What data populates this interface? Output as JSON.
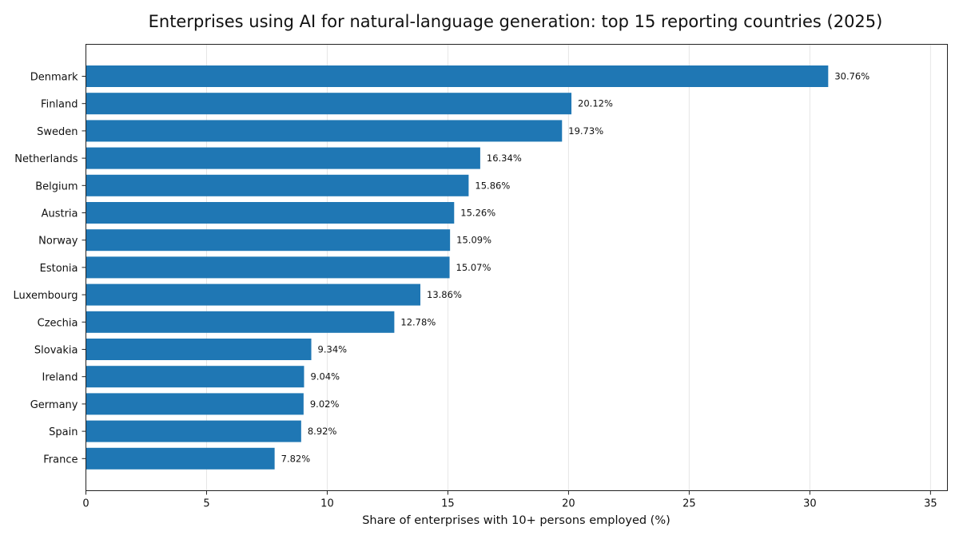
{
  "chart_data": {
    "type": "bar",
    "orientation": "horizontal",
    "title": "Enterprises using AI for natural-language generation: top 15 reporting countries (2025)",
    "xlabel": "Share of enterprises with 10+ persons employed (%)",
    "ylabel": "",
    "xlim": [
      0,
      35.7
    ],
    "xticks": [
      0,
      5,
      10,
      15,
      20,
      25,
      30,
      35
    ],
    "grid": "vertical",
    "bar_color": "#1f77b4",
    "value_suffix": "%",
    "categories": [
      "Denmark",
      "Finland",
      "Sweden",
      "Netherlands",
      "Belgium",
      "Austria",
      "Norway",
      "Estonia",
      "Luxembourg",
      "Czechia",
      "Slovakia",
      "Ireland",
      "Germany",
      "Spain",
      "France"
    ],
    "values": [
      30.76,
      20.12,
      19.73,
      16.34,
      15.86,
      15.26,
      15.09,
      15.07,
      13.86,
      12.78,
      9.34,
      9.04,
      9.02,
      8.92,
      7.82
    ],
    "value_labels": [
      "30.76%",
      "20.12%",
      "19.73%",
      "16.34%",
      "15.86%",
      "15.26%",
      "15.09%",
      "15.07%",
      "13.86%",
      "12.78%",
      "9.34%",
      "9.04%",
      "9.02%",
      "8.92%",
      "7.82%"
    ]
  }
}
